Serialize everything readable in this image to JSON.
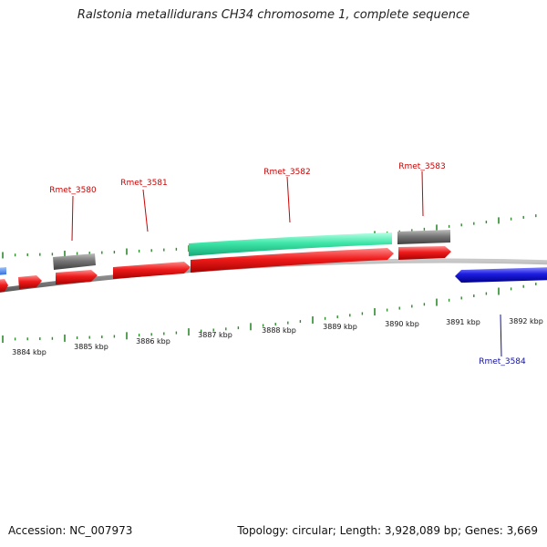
{
  "title": "Ralstonia metallidurans CH34 chromosome 1, complete sequence",
  "footer": {
    "accession": "Accession: NC_007973",
    "summary": "Topology: circular; Length: 3,928,089 bp; Genes: 3,669"
  },
  "colors": {
    "forward_cds": "#e8141c",
    "reverse_cds": "#1a1ad0",
    "rna_feature": "#3ee6a8",
    "gray_feature": "#6e6e6e",
    "backbone": "#8a8a8a",
    "ticks": "#2e8b2e",
    "forward_label": "#cc0000",
    "reverse_label": "#1010a0"
  },
  "scale_labels": [
    "3884 kbp",
    "3885 kbp",
    "3886 kbp",
    "3887 kbp",
    "3888 kbp",
    "3889 kbp",
    "3890 kbp",
    "3891 kbp",
    "3892 kbp"
  ],
  "gene_labels": [
    {
      "text": "Rmet_3580",
      "strand": "forward"
    },
    {
      "text": "Rmet_3581",
      "strand": "forward"
    },
    {
      "text": "Rmet_3582",
      "strand": "forward"
    },
    {
      "text": "Rmet_3583",
      "strand": "forward"
    },
    {
      "text": "Rmet_3584",
      "strand": "reverse"
    }
  ]
}
